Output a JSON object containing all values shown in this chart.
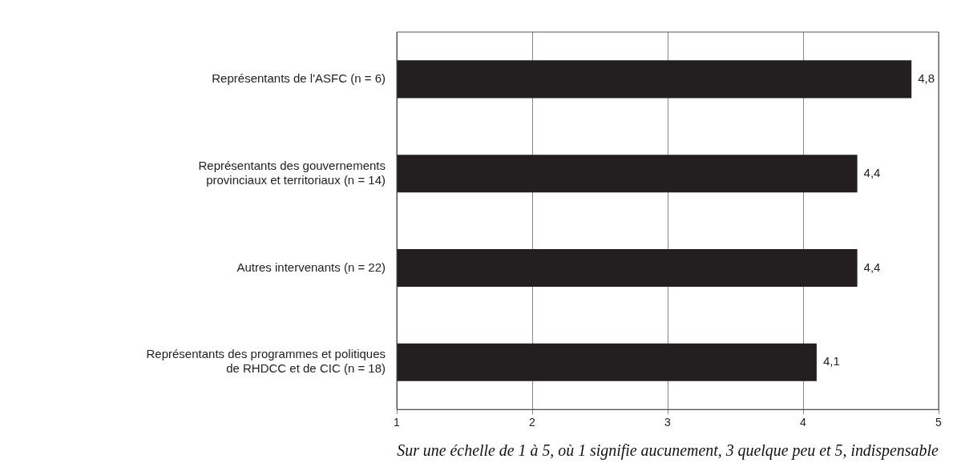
{
  "chart_data": {
    "type": "bar",
    "orientation": "horizontal",
    "categories": [
      "Représentants de l'ASFC (n = 6)",
      "Représentants des gouvernements\nprovinciaux et territoriaux (n = 14)",
      "Autres intervenants (n = 22)",
      "Représentants des programmes et politiques\nde RHDCC et de CIC (n = 18)"
    ],
    "values": [
      4.8,
      4.4,
      4.4,
      4.1
    ],
    "value_labels": [
      "4,8",
      "4,4",
      "4,4",
      "4,1"
    ],
    "color": "#231f20",
    "xlim": [
      1,
      5
    ],
    "xticks": [
      1,
      2,
      3,
      4,
      5
    ],
    "xlabel": "Sur une échelle de 1 à 5, où 1 signifie aucunement, 3 quelque peu et 5, indispensable",
    "grid": "x",
    "legend": false
  }
}
